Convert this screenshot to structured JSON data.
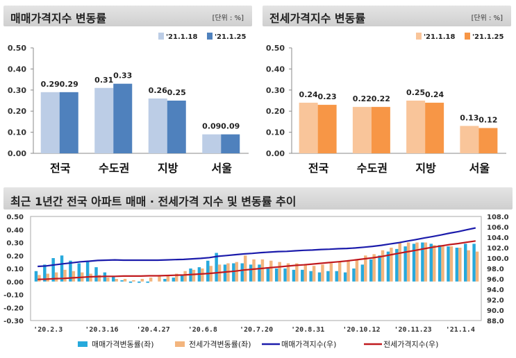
{
  "left_panel": {
    "title": "매매가격지수 변동률",
    "unit": "[단위 : %]"
  },
  "right_panel": {
    "title": "전세가격지수 변동률",
    "unit": "[단위 : %]"
  },
  "bottom_panel": {
    "title": "최근 1년간 전국 아파트 매매 · 전세가격 지수 및 변동률 추이"
  },
  "colors": {
    "left_series_1": "#bccde6",
    "left_series_2": "#4f81bd",
    "right_series_1": "#f9c59a",
    "right_series_2": "#f79646",
    "sale_bar": "#27a9dc",
    "jeonse_bar": "#f3b57e",
    "sale_line": "#1b1bab",
    "jeonse_line": "#c0191e"
  },
  "chart_data": [
    {
      "type": "bar",
      "title": "매매가격지수 변동률",
      "unit": "[단위 : %]",
      "categories": [
        "전국",
        "수도권",
        "지방",
        "서울"
      ],
      "series": [
        {
          "name": "'21.1.18",
          "values": [
            0.29,
            0.31,
            0.26,
            0.09
          ]
        },
        {
          "name": "'21.1.25",
          "values": [
            0.29,
            0.33,
            0.25,
            0.09
          ]
        }
      ],
      "yticks": [
        "0.00",
        "0.10",
        "0.20",
        "0.30",
        "0.40",
        "0.50"
      ],
      "ylim": [
        0,
        0.5
      ],
      "legend": "top-right",
      "grid": false
    },
    {
      "type": "bar",
      "title": "전세가격지수 변동률",
      "unit": "[단위 : %]",
      "categories": [
        "전국",
        "수도권",
        "지방",
        "서울"
      ],
      "series": [
        {
          "name": "'21.1.18",
          "values": [
            0.24,
            0.22,
            0.25,
            0.13
          ]
        },
        {
          "name": "'21.1.25",
          "values": [
            0.23,
            0.22,
            0.24,
            0.12
          ]
        }
      ],
      "yticks": [
        "0.00",
        "0.10",
        "0.20",
        "0.30",
        "0.40",
        "0.50"
      ],
      "ylim": [
        0,
        0.5
      ],
      "legend": "top-right",
      "grid": false
    },
    {
      "type": "bar",
      "title": "최근 1년간 전국 아파트 매매 · 전세가격 지수 및 변동률 추이",
      "x_tick_labels": [
        "'20.2.3",
        "'20.3.16",
        "'20.4.27",
        "'20.6.8",
        "'20.7.20",
        "'20.8.31",
        "'20.10.12",
        "'20.11.23",
        "'21.1.4"
      ],
      "x": [
        "'20.2.3",
        "'20.2.10",
        "'20.2.17",
        "'20.2.24",
        "'20.3.2",
        "'20.3.9",
        "'20.3.16",
        "'20.3.23",
        "'20.3.30",
        "'20.4.6",
        "'20.4.13",
        "'20.4.20",
        "'20.4.27",
        "'20.5.4",
        "'20.5.11",
        "'20.5.18",
        "'20.5.25",
        "'20.6.1",
        "'20.6.8",
        "'20.6.15",
        "'20.6.22",
        "'20.6.29",
        "'20.7.6",
        "'20.7.13",
        "'20.7.20",
        "'20.7.27",
        "'20.8.3",
        "'20.8.10",
        "'20.8.17",
        "'20.8.24",
        "'20.8.31",
        "'20.9.7",
        "'20.9.14",
        "'20.9.21",
        "'20.9.28",
        "'20.10.5",
        "'20.10.12",
        "'20.10.19",
        "'20.10.26",
        "'20.11.2",
        "'20.11.9",
        "'20.11.16",
        "'20.11.23",
        "'20.11.30",
        "'20.12.7",
        "'20.12.14",
        "'20.12.21",
        "'20.12.28",
        "'21.1.4",
        "'21.1.11",
        "'21.1.18",
        "'21.1.25"
      ],
      "y_left_ticks": [
        "-0.30",
        "-0.20",
        "-0.10",
        "0.00",
        "0.10",
        "0.20",
        "0.30",
        "0.40",
        "0.50"
      ],
      "y_left_lim": [
        -0.3,
        0.5
      ],
      "y_right_ticks": [
        "88.0",
        "90.0",
        "92.0",
        "94.0",
        "96.0",
        "98.0",
        "100.0",
        "102.0",
        "104.0",
        "106.0",
        "108.0"
      ],
      "y_right_lim": [
        88,
        108
      ],
      "legend": "bottom",
      "grid": false,
      "series": [
        {
          "name": "매매가격변동률(좌)",
          "kind": "bar",
          "axis": "left",
          "values": [
            0.08,
            0.13,
            0.18,
            0.2,
            0.16,
            0.14,
            0.15,
            0.11,
            0.07,
            0.04,
            0.01,
            -0.01,
            -0.01,
            -0.01,
            0.0,
            0.02,
            0.03,
            0.05,
            0.1,
            0.11,
            0.16,
            0.22,
            0.13,
            0.14,
            0.14,
            0.13,
            0.13,
            0.11,
            0.1,
            0.1,
            0.09,
            0.09,
            0.08,
            0.07,
            0.08,
            0.08,
            0.07,
            0.1,
            0.13,
            0.17,
            0.2,
            0.23,
            0.25,
            0.27,
            0.29,
            0.3,
            0.29,
            0.28,
            0.27,
            0.26,
            0.29,
            0.29
          ]
        },
        {
          "name": "전세가격변동률(좌)",
          "kind": "bar",
          "axis": "left",
          "values": [
            0.05,
            0.06,
            0.07,
            0.09,
            0.08,
            0.07,
            0.06,
            0.05,
            0.03,
            0.02,
            0.02,
            0.01,
            0.02,
            0.03,
            0.04,
            0.05,
            0.06,
            0.08,
            0.09,
            0.1,
            0.12,
            0.13,
            0.14,
            0.15,
            0.2,
            0.17,
            0.17,
            0.16,
            0.15,
            0.14,
            0.14,
            0.13,
            0.12,
            0.13,
            0.14,
            0.15,
            0.16,
            0.17,
            0.2,
            0.21,
            0.24,
            0.26,
            0.3,
            0.3,
            0.3,
            0.3,
            0.28,
            0.28,
            0.27,
            0.26,
            0.24,
            0.23
          ]
        },
        {
          "name": "매매가격지수(우)",
          "kind": "line",
          "axis": "right",
          "values": [
            98.4,
            98.5,
            98.7,
            98.9,
            99.1,
            99.3,
            99.4,
            99.55,
            99.6,
            99.65,
            99.6,
            99.6,
            99.6,
            99.6,
            99.6,
            99.65,
            99.7,
            99.75,
            99.85,
            99.95,
            100.1,
            100.35,
            100.5,
            100.65,
            100.8,
            100.9,
            101.05,
            101.15,
            101.25,
            101.3,
            101.4,
            101.5,
            101.55,
            101.65,
            101.7,
            101.8,
            101.85,
            101.95,
            102.1,
            102.25,
            102.45,
            102.7,
            102.95,
            103.25,
            103.55,
            103.85,
            104.15,
            104.45,
            104.8,
            105.1,
            105.45,
            105.8
          ]
        },
        {
          "name": "전세가격지수(우)",
          "kind": "line",
          "axis": "right",
          "values": [
            95.9,
            95.95,
            96.05,
            96.1,
            96.2,
            96.3,
            96.4,
            96.45,
            96.5,
            96.5,
            96.55,
            96.55,
            96.55,
            96.6,
            96.6,
            96.65,
            96.7,
            96.75,
            96.85,
            96.95,
            97.05,
            97.2,
            97.35,
            97.5,
            97.7,
            97.85,
            98.0,
            98.15,
            98.3,
            98.45,
            98.6,
            98.7,
            98.85,
            99.0,
            99.15,
            99.3,
            99.45,
            99.65,
            99.85,
            100.05,
            100.3,
            100.6,
            100.9,
            101.2,
            101.5,
            101.8,
            102.1,
            102.35,
            102.6,
            102.8,
            103.05,
            103.3
          ]
        }
      ]
    }
  ]
}
